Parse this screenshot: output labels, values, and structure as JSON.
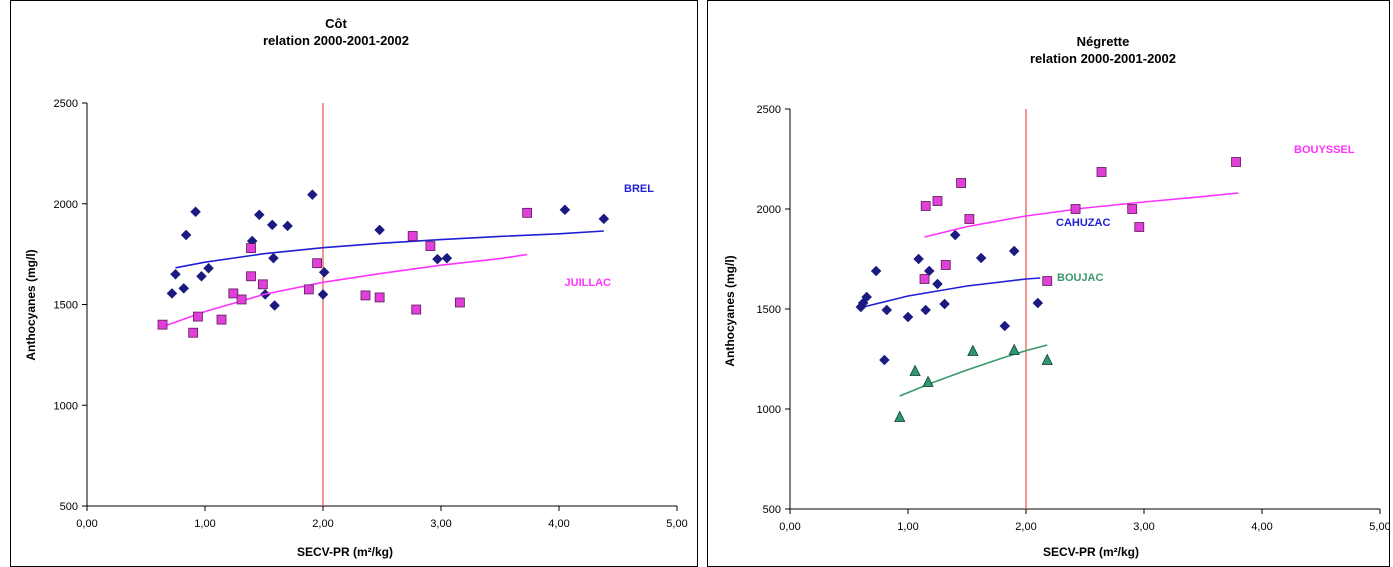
{
  "chart_data": [
    {
      "type": "scatter",
      "title": "Côt",
      "subtitle": "relation 2000-2001-2002",
      "xlabel": "SECV-PR  (m²/kg)",
      "ylabel": "Anthocyanes (mg/l)",
      "xlim": [
        0,
        5
      ],
      "ylim": [
        500,
        2500
      ],
      "x_ticks": [
        "0,00",
        "1,00",
        "2,00",
        "3,00",
        "4,00",
        "5,00"
      ],
      "y_ticks": [
        "500",
        "1000",
        "1500",
        "2000",
        "2500"
      ],
      "grid": false,
      "reference_line_x": 2.0,
      "reference_color": "#e8504a",
      "series": [
        {
          "name": "BREL",
          "marker": "diamond",
          "color": "#1a1a80",
          "trend_color": "#1f1fd6",
          "label_color": "#1f1fd6",
          "points": [
            [
              0.72,
              1555
            ],
            [
              0.75,
              1650
            ],
            [
              0.82,
              1580
            ],
            [
              0.84,
              1845
            ],
            [
              0.92,
              1960
            ],
            [
              0.97,
              1640
            ],
            [
              1.03,
              1680
            ],
            [
              1.4,
              1815
            ],
            [
              1.46,
              1945
            ],
            [
              1.51,
              1550
            ],
            [
              1.57,
              1895
            ],
            [
              1.58,
              1730
            ],
            [
              1.59,
              1495
            ],
            [
              1.7,
              1890
            ],
            [
              1.91,
              2045
            ],
            [
              2.01,
              1660
            ],
            [
              2.0,
              1550
            ],
            [
              2.48,
              1870
            ],
            [
              2.97,
              1725
            ],
            [
              3.05,
              1730
            ],
            [
              4.05,
              1970
            ],
            [
              4.38,
              1925
            ]
          ],
          "trend": [
            [
              0.75,
              1682
            ],
            [
              1.0,
              1710
            ],
            [
              1.5,
              1752
            ],
            [
              2.0,
              1782
            ],
            [
              2.5,
              1804
            ],
            [
              3.0,
              1822
            ],
            [
              3.5,
              1838
            ],
            [
              4.0,
              1851
            ],
            [
              4.38,
              1865
            ]
          ]
        },
        {
          "name": "JUILLAC",
          "marker": "square",
          "color": "#e040d8",
          "trend_color": "#ff33ff",
          "label_color": "#ff33ff",
          "points": [
            [
              0.64,
              1400
            ],
            [
              0.9,
              1360
            ],
            [
              0.94,
              1440
            ],
            [
              1.14,
              1425
            ],
            [
              1.24,
              1555
            ],
            [
              1.31,
              1525
            ],
            [
              1.39,
              1640
            ],
            [
              1.39,
              1780
            ],
            [
              1.49,
              1600
            ],
            [
              1.88,
              1575
            ],
            [
              1.95,
              1705
            ],
            [
              2.36,
              1545
            ],
            [
              2.48,
              1535
            ],
            [
              2.76,
              1840
            ],
            [
              2.79,
              1475
            ],
            [
              2.91,
              1790
            ],
            [
              3.16,
              1510
            ],
            [
              3.73,
              1955
            ]
          ],
          "trend": [
            [
              0.64,
              1390
            ],
            [
              1.0,
              1465
            ],
            [
              1.5,
              1550
            ],
            [
              2.0,
              1610
            ],
            [
              2.5,
              1655
            ],
            [
              3.0,
              1695
            ],
            [
              3.5,
              1728
            ],
            [
              3.73,
              1748
            ]
          ]
        }
      ]
    },
    {
      "type": "scatter",
      "title": "Négrette",
      "subtitle": "relation 2000-2001-2002",
      "xlabel": "SECV-PR  (m²/kg)",
      "ylabel": "Anthocyanes (mg/l)",
      "xlim": [
        0,
        5
      ],
      "ylim": [
        500,
        2500
      ],
      "x_ticks": [
        "0,00",
        "1,00",
        "2,00",
        "3,00",
        "4,00",
        "5,00"
      ],
      "y_ticks": [
        "500",
        "1000",
        "1500",
        "2000",
        "2500"
      ],
      "grid": false,
      "reference_line_x": 2.0,
      "reference_color": "#e8504a",
      "series": [
        {
          "name": "CAHUZAC",
          "marker": "diamond",
          "color": "#1a1a80",
          "trend_color": "#1f1fd6",
          "label_color": "#1f1fd6",
          "points": [
            [
              0.6,
              1510
            ],
            [
              0.62,
              1530
            ],
            [
              0.65,
              1560
            ],
            [
              0.73,
              1690
            ],
            [
              0.8,
              1245
            ],
            [
              0.82,
              1495
            ],
            [
              1.0,
              1460
            ],
            [
              1.09,
              1750
            ],
            [
              1.15,
              1495
            ],
            [
              1.18,
              1690
            ],
            [
              1.25,
              1625
            ],
            [
              1.31,
              1525
            ],
            [
              1.4,
              1870
            ],
            [
              1.62,
              1755
            ],
            [
              1.82,
              1415
            ],
            [
              1.9,
              1790
            ],
            [
              2.1,
              1530
            ]
          ],
          "trend": [
            [
              0.62,
              1510
            ],
            [
              1.0,
              1565
            ],
            [
              1.5,
              1615
            ],
            [
              2.0,
              1650
            ],
            [
              2.12,
              1655
            ]
          ]
        },
        {
          "name": "BOUYSSEL",
          "marker": "square",
          "color": "#e040d8",
          "trend_color": "#ff33ff",
          "label_color": "#ff33ff",
          "points": [
            [
              1.14,
              1650
            ],
            [
              1.15,
              2015
            ],
            [
              1.25,
              2040
            ],
            [
              1.32,
              1720
            ],
            [
              1.45,
              2130
            ],
            [
              1.52,
              1950
            ],
            [
              2.18,
              1640
            ],
            [
              2.42,
              2000
            ],
            [
              2.64,
              2185
            ],
            [
              2.9,
              2000
            ],
            [
              2.96,
              1910
            ],
            [
              3.78,
              2235
            ]
          ],
          "trend": [
            [
              1.14,
              1860
            ],
            [
              1.5,
              1912
            ],
            [
              2.0,
              1965
            ],
            [
              2.5,
              2005
            ],
            [
              3.0,
              2035
            ],
            [
              3.5,
              2062
            ],
            [
              3.8,
              2080
            ]
          ]
        },
        {
          "name": "BOUJAC",
          "marker": "triangle",
          "color": "#2e9670",
          "trend_color": "#3a9a6a",
          "label_color": "#3a9a6a",
          "points": [
            [
              0.93,
              960
            ],
            [
              1.06,
              1190
            ],
            [
              1.17,
              1135
            ],
            [
              1.55,
              1290
            ],
            [
              1.9,
              1295
            ],
            [
              2.18,
              1245
            ]
          ],
          "trend": [
            [
              0.93,
              1065
            ],
            [
              1.2,
              1130
            ],
            [
              1.5,
              1195
            ],
            [
              1.8,
              1255
            ],
            [
              2.0,
              1292
            ],
            [
              2.18,
              1320
            ]
          ]
        }
      ]
    }
  ]
}
